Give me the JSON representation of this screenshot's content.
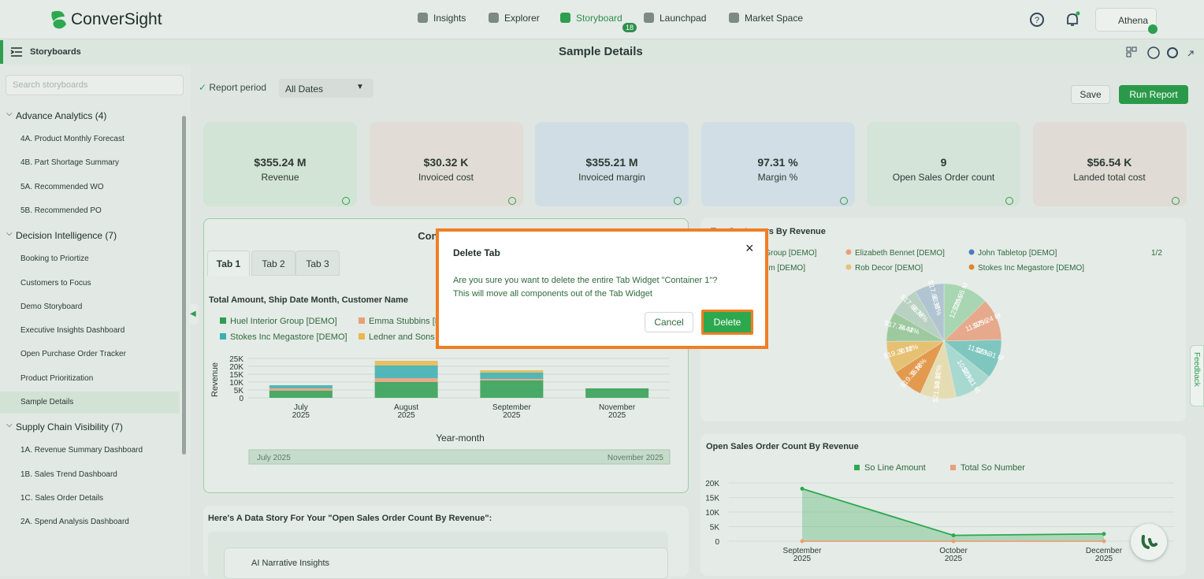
{
  "nav": {
    "logo": "ConverSight",
    "items": [
      "Insights",
      "Explorer",
      "Storyboard",
      "Launchpad",
      "Market Space"
    ],
    "badge": "18",
    "user": "Athena"
  },
  "toolbar": {
    "section": "Storyboards",
    "title": "Sample Details"
  },
  "sidebar": {
    "search": "Search storyboards",
    "groups": [
      {
        "title": "Advance Analytics (4)",
        "items": [
          "4A. Product Monthly Forecast",
          "4B. Part Shortage Summary",
          "5A. Recommended WO",
          "5B. Recommended PO"
        ]
      },
      {
        "title": "Decision Intelligence (7)",
        "items": [
          "Booking to Priortize",
          "Customers to Focus",
          "Demo Storyboard",
          "Executive Insights Dashboard",
          "Open Purchase Order Tracker",
          "Product Prioritization",
          "Sample Details"
        ]
      },
      {
        "title": "Supply Chain Visibility (7)",
        "items": [
          "1A. Revenue Summary Dashboard",
          "1B. Sales Trend Dashboard",
          "1C. Sales Order Details",
          "2A. Spend Analysis Dashboard"
        ]
      }
    ]
  },
  "filter": {
    "label": "Report period",
    "value": "All Dates",
    "save": "Save",
    "run": "Run Report"
  },
  "kpis": [
    {
      "value": "$355.24 M",
      "label": "Revenue"
    },
    {
      "value": "$30.32 K",
      "label": "Invoiced cost"
    },
    {
      "value": "$355.21 M",
      "label": "Invoiced margin"
    },
    {
      "value": "97.31 %",
      "label": "Margin %"
    },
    {
      "value": "9",
      "label": "Open Sales Order count"
    },
    {
      "value": "$56.54 K",
      "label": "Landed total cost"
    }
  ],
  "tab_widget": {
    "title": "Container 1",
    "tabs": [
      "Tab 1",
      "Tab 2",
      "Tab 3"
    ]
  },
  "bar_chart": {
    "type": "bar",
    "title": "Total Amount, Ship Date Month, Customer Name",
    "categories": [
      [
        "July",
        "2025"
      ],
      [
        "August",
        "2025"
      ],
      [
        "September",
        "2025"
      ],
      [
        "November",
        "2025"
      ]
    ],
    "series": [
      {
        "name": "Huel Interior Group [DEMO]",
        "color": "#2e9e4f",
        "values": [
          4500,
          10000,
          11000,
          6000
        ]
      },
      {
        "name": "Emma Stubbins [DEMO]",
        "color": "#e8a07a",
        "values": [
          1500,
          2500,
          1000,
          0
        ]
      },
      {
        "name": "Stokes Inc Megastore [DEMO]",
        "color": "#3aaeb0",
        "values": [
          2000,
          8000,
          4000,
          0
        ]
      },
      {
        "name": "Ledner and Sons [DEMO]",
        "color": "#e8b84a",
        "values": [
          0,
          3000,
          1500,
          0
        ]
      }
    ],
    "ylim": [
      0,
      25000
    ],
    "yticks": [
      {
        "value": 0,
        "label": "0"
      },
      {
        "value": 5000,
        "label": "5K"
      },
      {
        "value": 10000,
        "label": "10K"
      },
      {
        "value": 15000,
        "label": "15K"
      },
      {
        "value": 20000,
        "label": "20K"
      },
      {
        "value": 25000,
        "label": "25K"
      }
    ],
    "y_label": "Revenue",
    "x_label": "Year-month",
    "range": [
      "July 2025",
      "November 2025"
    ]
  },
  "pie_chart": {
    "type": "pie",
    "title": "Top Customers By Revenue",
    "legend": [
      {
        "name": "Huel Interior Group [DEMO]",
        "color": "#2e9e4f"
      },
      {
        "name": "Elizabeth Bennet [DEMO]",
        "color": "#e8a07a"
      },
      {
        "name": "John Tabletop [DEMO]",
        "color": "#4a7cc0"
      },
      {
        "name": "m [DEMO]",
        "color": "#3aaeb0"
      },
      {
        "name": "Rob Decor [DEMO]",
        "color": "#e8c070"
      },
      {
        "name": "Stokes Inc Megastore [DEMO]",
        "color": "#e0872e"
      }
    ],
    "page": "1/2",
    "values": [
      12.78,
      11.97,
      11.06,
      10.96,
      10.22,
      9.18,
      9.11,
      8.41,
      8.38,
      8.35
    ],
    "value_labels": [
      "12.78%",
      "11.97%",
      "11.06%",
      "10.96%",
      "10.22%",
      "9.18%",
      "9.11%",
      "8.41%",
      "8.38%",
      "8.35%"
    ],
    "amounts": [
      "$26.95 M",
      "$25.24 M",
      "$23.31 M",
      "$23.11 M",
      "$21.54 M",
      "$19.35 M",
      "$19.20 M",
      "$17.74 M",
      "$17.68 M",
      "$17.60 M"
    ],
    "colors": [
      "#a9d6b2",
      "#e6a98b",
      "#7fc6be",
      "#a8d9d1",
      "#e6dcb2",
      "#e39a4e",
      "#e6c173",
      "#9dc99e",
      "#b9d1c2",
      "#b1c4d1"
    ]
  },
  "line_chart": {
    "type": "line",
    "title": "Open Sales Order Count By Revenue",
    "categories": [
      [
        "September",
        "2025"
      ],
      [
        "October",
        "2025"
      ],
      [
        "December",
        "2025"
      ]
    ],
    "series": [
      {
        "name": "So Line Amount",
        "color": "#2ea84f",
        "values": [
          18000,
          2000,
          2500
        ]
      },
      {
        "name": "Total So Number",
        "color": "#e8a07a",
        "values": [
          9,
          2,
          3
        ]
      }
    ],
    "ylim": [
      0,
      20000
    ],
    "yticks": [
      {
        "value": 0,
        "label": "0"
      },
      {
        "value": 5000,
        "label": "5K"
      },
      {
        "value": 10000,
        "label": "10K"
      },
      {
        "value": 15000,
        "label": "15K"
      },
      {
        "value": 20000,
        "label": "20K"
      }
    ]
  },
  "story": {
    "title": "Here's A Data Story For Your \"Open Sales Order Count By Revenue\":",
    "section": "AI Narrative Insights"
  },
  "modal": {
    "title": "Delete Tab",
    "body": [
      "Are you sure you want to delete the entire Tab Widget \"Container 1\"?",
      "This will move all components out of the Tab Widget"
    ],
    "cancel": "Cancel",
    "confirm": "Delete"
  },
  "feedback": "Feedback"
}
